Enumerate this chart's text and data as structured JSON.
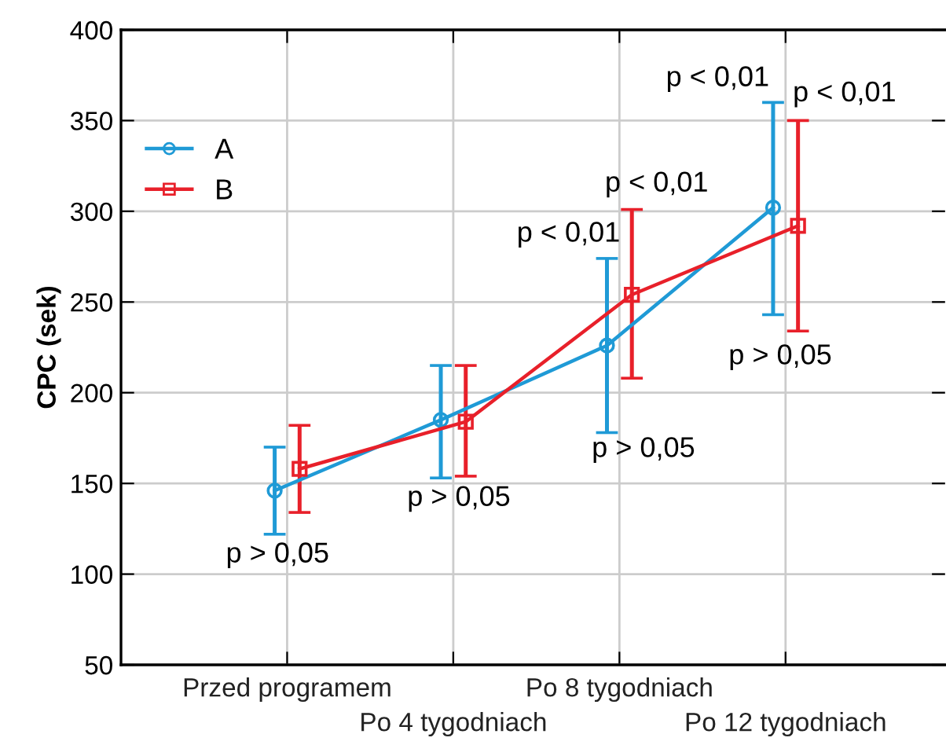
{
  "chart_data": {
    "type": "line",
    "ylabel": "CPC (sek)",
    "categories": [
      "Przed programem",
      "Po 4 tygodniach",
      "Po 8 tygodniach",
      "Po 12 tygodniach"
    ],
    "series": [
      {
        "name": "A",
        "color": "#1f9ad6",
        "values": [
          146,
          185,
          226,
          302
        ],
        "errors": [
          [
            122,
            170
          ],
          [
            153,
            215
          ],
          [
            178,
            274
          ],
          [
            243,
            360
          ]
        ],
        "marker": "circle"
      },
      {
        "name": "B",
        "color": "#e8202a",
        "values": [
          158,
          184,
          254,
          292
        ],
        "errors": [
          [
            134,
            182
          ],
          [
            154,
            215
          ],
          [
            208,
            301
          ],
          [
            234,
            350
          ]
        ],
        "marker": "square"
      }
    ],
    "ylim": [
      50,
      400
    ],
    "yticks": [
      50,
      100,
      150,
      200,
      250,
      300,
      350,
      400
    ],
    "grid": true,
    "legend": "top left",
    "line_style": "solid",
    "annotations": [
      "p > 0,05",
      "p > 0,05",
      "p > 0,05",
      "p < 0,01",
      "p < 0,01",
      "p < 0,01",
      "p < 0,01",
      "p > 0,05"
    ]
  }
}
